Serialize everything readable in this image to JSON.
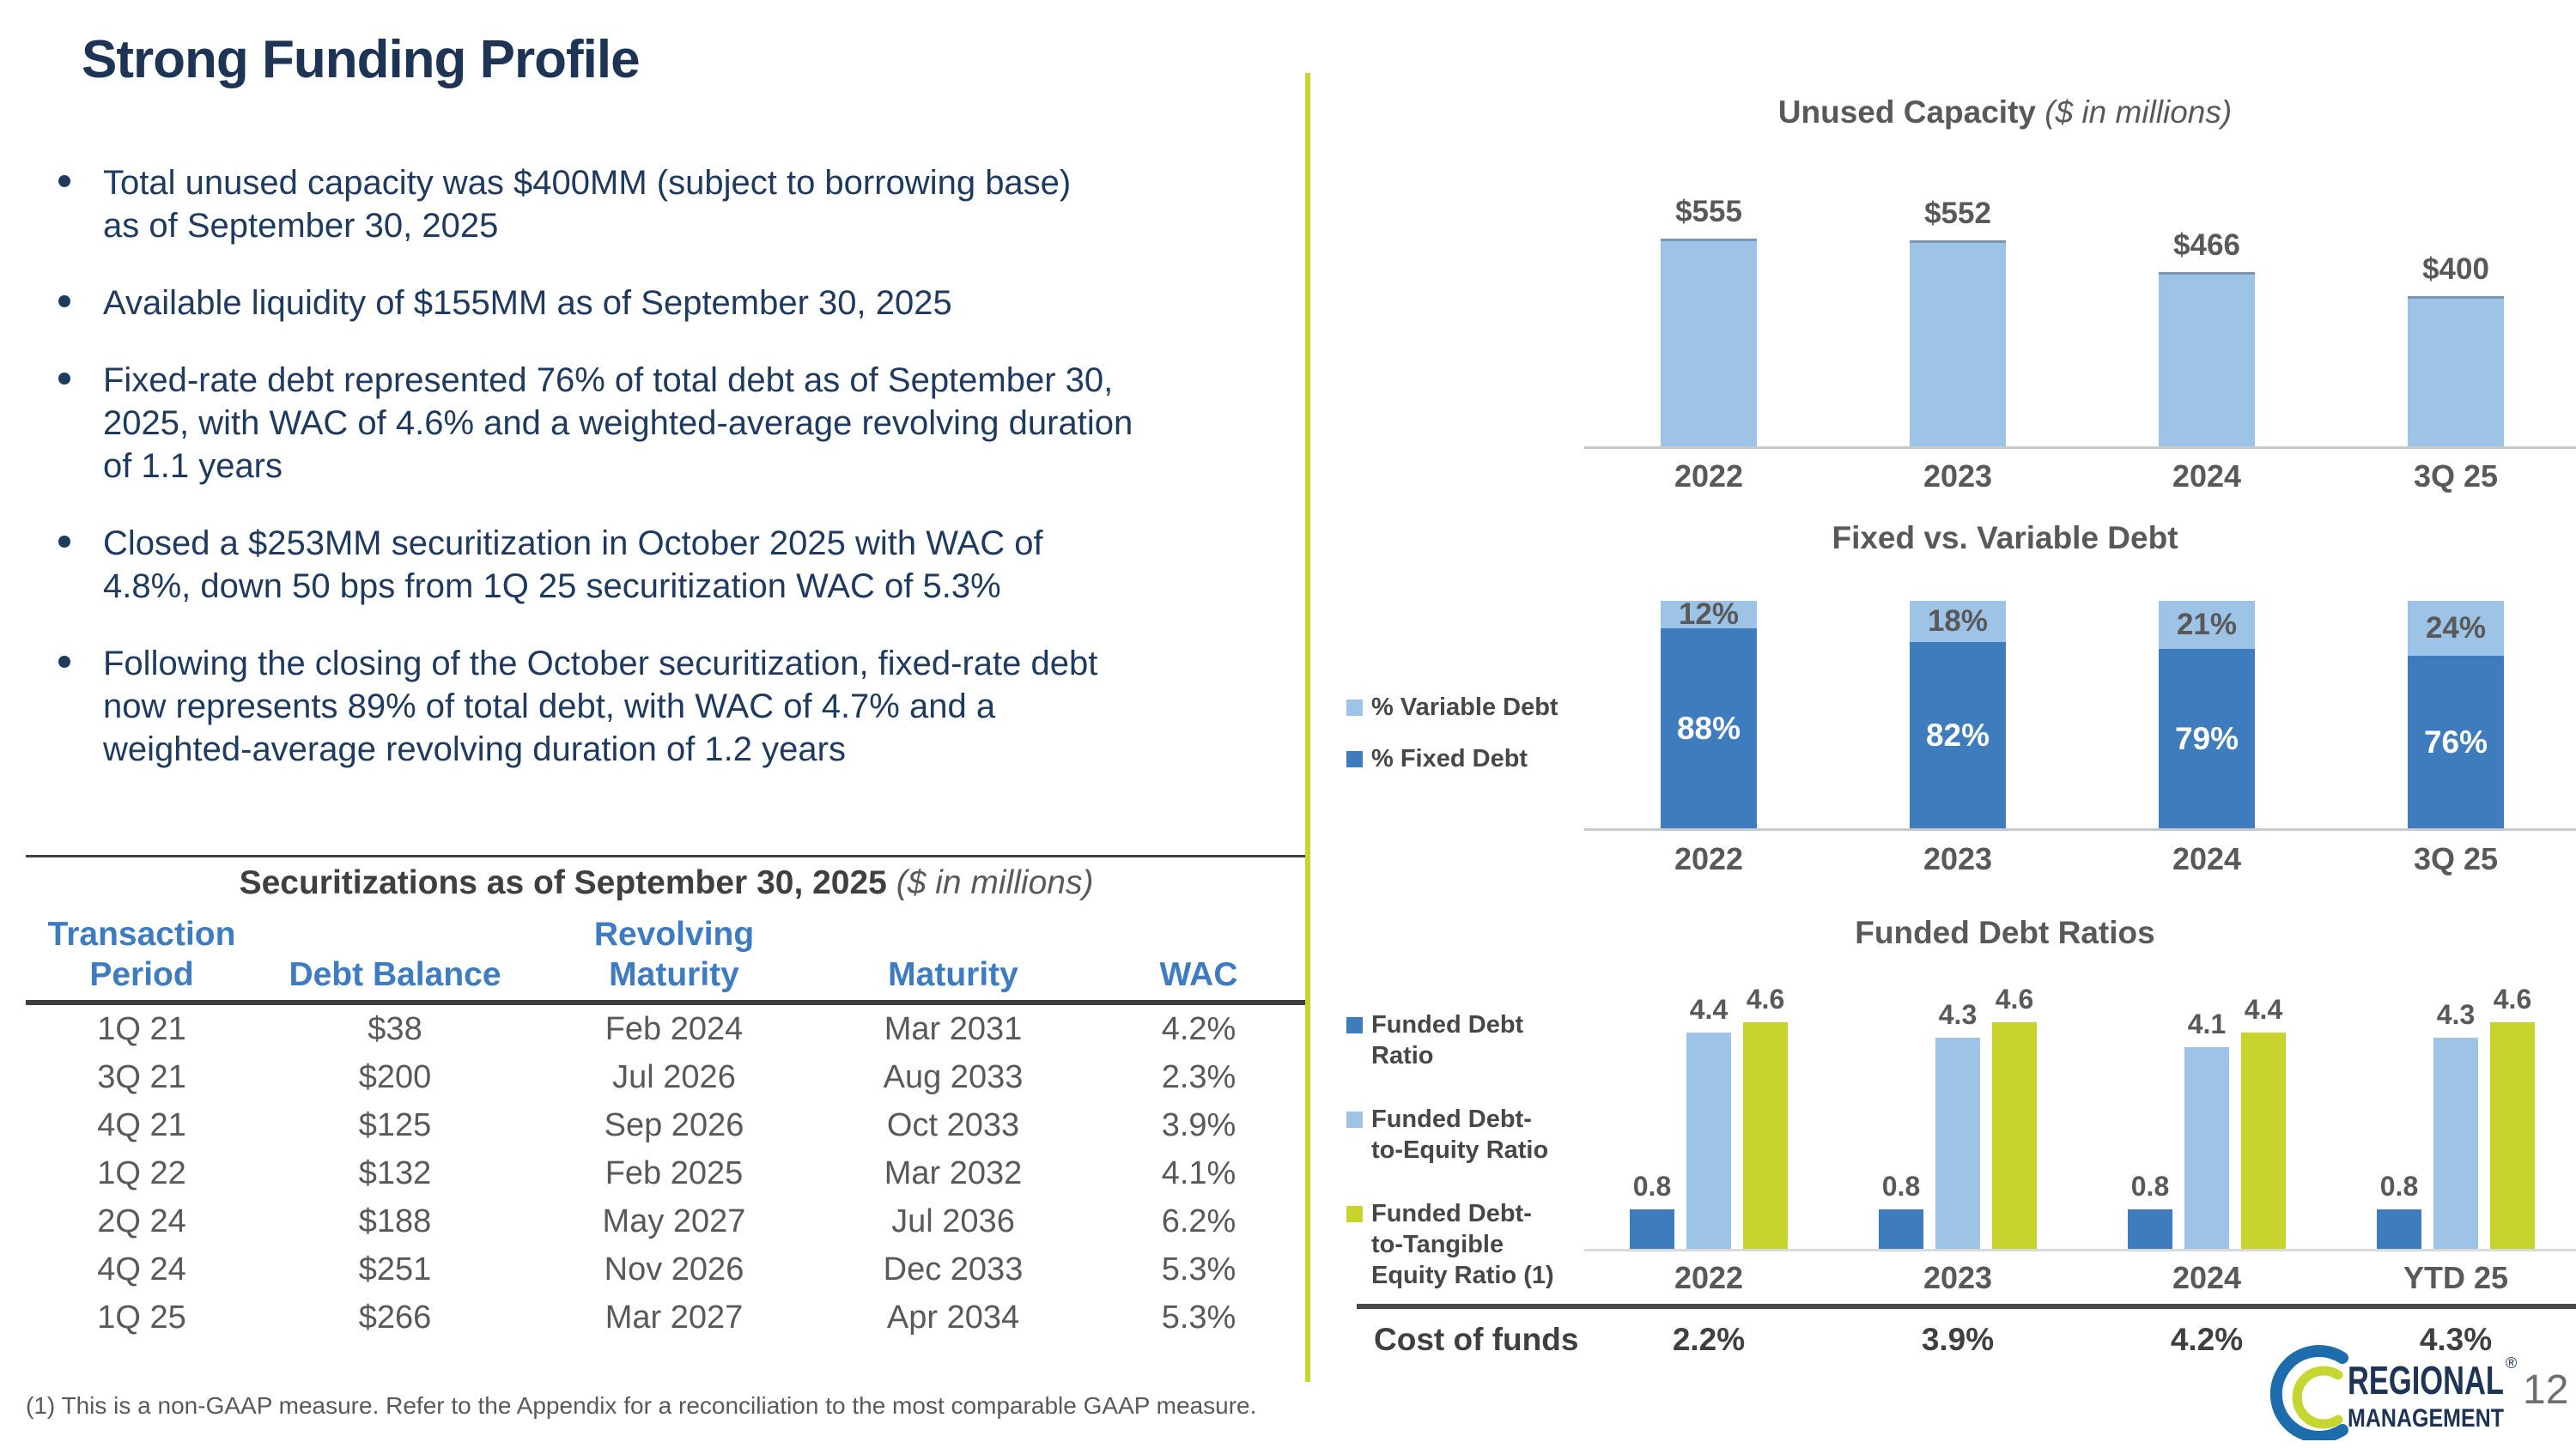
{
  "slide": {
    "title": "Strong Funding Profile",
    "page_number": "12",
    "footnote": "(1) This is a non-GAAP measure. Refer to the Appendix for a reconciliation to the most comparable GAAP measure."
  },
  "logo": {
    "line1": "REGIONAL",
    "line2": "MANAGEMENT",
    "reg": "®"
  },
  "bullets": [
    "Total unused capacity was $400MM (subject to borrowing base)\nas of September 30, 2025",
    "Available liquidity of $155MM as of September 30, 2025",
    "Fixed-rate debt represented 76% of total debt as of September 30,\n2025, with WAC of 4.6% and a weighted-average revolving duration\nof 1.1 years",
    "Closed a $253MM securitization in October 2025 with WAC of\n4.8%, down 50 bps from 1Q 25 securitization WAC of 5.3%",
    "Following the closing of the October securitization, fixed-rate debt\nnow represents 89% of total debt, with WAC of 4.7% and a\nweighted-average revolving duration of 1.2 years"
  ],
  "table": {
    "title": "Securitizations as of September 30, 2025",
    "title_suffix": "($ in millions)",
    "headers": [
      "Transaction\nPeriod",
      "Debt Balance",
      "Revolving\nMaturity",
      "Maturity",
      "WAC"
    ],
    "rows": [
      [
        "1Q 21",
        "$38",
        "Feb 2024",
        "Mar 2031",
        "4.2%"
      ],
      [
        "3Q 21",
        "$200",
        "Jul 2026",
        "Aug 2033",
        "2.3%"
      ],
      [
        "4Q 21",
        "$125",
        "Sep 2026",
        "Oct 2033",
        "3.9%"
      ],
      [
        "1Q 22",
        "$132",
        "Feb 2025",
        "Mar 2032",
        "4.1%"
      ],
      [
        "2Q 24",
        "$188",
        "May 2027",
        "Jul 2036",
        "6.2%"
      ],
      [
        "4Q 24",
        "$251",
        "Nov 2026",
        "Dec 2033",
        "5.3%"
      ],
      [
        "1Q 25",
        "$266",
        "Mar 2027",
        "Apr 2034",
        "5.3%"
      ]
    ]
  },
  "chart_data": [
    {
      "type": "bar",
      "title": "Unused Capacity",
      "subtitle": "($ in millions)",
      "categories": [
        "2022",
        "2023",
        "2024",
        "3Q 25"
      ],
      "values": [
        555,
        552,
        466,
        400
      ],
      "value_prefix": "$",
      "bar_color": "#9dc3e6",
      "ylim": [
        0,
        620
      ],
      "grid": false,
      "legend_position": "none"
    },
    {
      "type": "bar",
      "stacked": true,
      "title": "Fixed vs. Variable Debt",
      "categories": [
        "2022",
        "2023",
        "2024",
        "3Q 25"
      ],
      "series": [
        {
          "name": "% Variable Debt",
          "values": [
            12,
            18,
            21,
            24
          ],
          "color": "#9dc3e6"
        },
        {
          "name": "% Fixed Debt",
          "values": [
            88,
            82,
            79,
            76
          ],
          "color": "#3e7cbe"
        }
      ],
      "value_suffix": "%",
      "ylim": [
        0,
        100
      ],
      "grid": false,
      "legend_position": "left"
    },
    {
      "type": "bar",
      "title": "Funded Debt Ratios",
      "categories": [
        "2022",
        "2023",
        "2024",
        "YTD 25"
      ],
      "series": [
        {
          "name": "Funded Debt\nRatio",
          "values": [
            0.8,
            0.8,
            0.8,
            0.8
          ],
          "color": "#3e7cbe"
        },
        {
          "name": "Funded Debt-\nto-Equity Ratio",
          "values": [
            4.4,
            4.3,
            4.1,
            4.3
          ],
          "color": "#9dc3e6"
        },
        {
          "name": "Funded Debt-\nto-Tangible\nEquity Ratio (1)",
          "values": [
            4.6,
            4.6,
            4.4,
            4.6
          ],
          "color": "#c9d32e"
        }
      ],
      "ylim": [
        0,
        5
      ],
      "grid": false,
      "legend_position": "left"
    }
  ],
  "cost_of_funds": {
    "label": "Cost of funds",
    "values": [
      "2.2%",
      "3.9%",
      "4.2%",
      "4.3%"
    ]
  },
  "colors": {
    "accent_divider": "#c5d630",
    "bar_light_blue": "#9dc3e6",
    "bar_dark_blue": "#3e7cbe",
    "bar_yellow_green": "#c9d32e",
    "navy_text": "#1e3455",
    "gray_text": "#595959",
    "table_header_blue": "#3d7cc0"
  }
}
